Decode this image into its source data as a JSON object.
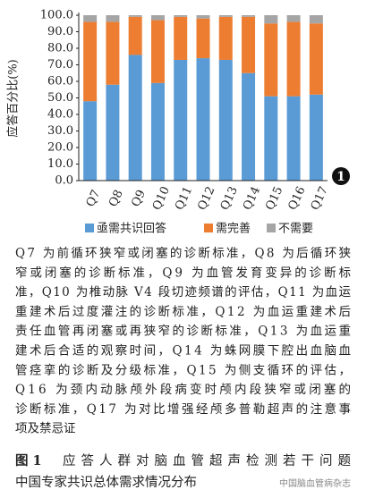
{
  "chart_data": {
    "type": "stacked_bar",
    "y_label": "应答百分比(%)",
    "categories": [
      "Q7",
      "Q8",
      "Q9",
      "Q10",
      "Q11",
      "Q12",
      "Q13",
      "Q14",
      "Q15",
      "Q16",
      "Q17"
    ],
    "series": [
      {
        "name": "亟需共识回答",
        "color": "#5b9bd5",
        "values": [
          48,
          58,
          76,
          59,
          73,
          74,
          73,
          65,
          51,
          51,
          52
        ]
      },
      {
        "name": "需完善",
        "color": "#ed7d31",
        "values": [
          48,
          38,
          23,
          38,
          26,
          24,
          26,
          34,
          44,
          45,
          43
        ]
      },
      {
        "name": "不需要",
        "color": "#a5a5a5",
        "values": [
          4,
          4,
          1,
          3,
          1,
          2,
          1,
          1,
          5,
          4,
          5
        ]
      }
    ],
    "ylim": [
      0,
      100
    ],
    "yticks": [
      {
        "value": 0,
        "label": "0.0"
      },
      {
        "value": 10,
        "label": "10.0"
      },
      {
        "value": 20,
        "label": "20.0"
      },
      {
        "value": 30,
        "label": "30.0"
      },
      {
        "value": 40,
        "label": "40.0"
      },
      {
        "value": 50,
        "label": "50.0"
      },
      {
        "value": 60,
        "label": "60.0"
      },
      {
        "value": 70,
        "label": "70.0"
      },
      {
        "value": 80,
        "label": "80.0"
      },
      {
        "value": 90,
        "label": "90.0"
      },
      {
        "value": 100,
        "label": "100.0"
      }
    ],
    "badge": "1"
  },
  "notes": [
    "Q7 为前循环狭窄或闭塞的诊断标准，Q8 为后循环狭",
    "窄或闭塞的诊断标准，Q9 为血管发育变异的诊断标",
    "准，Q10 为椎动脉 V4 段切迹频谱的评估，Q11 为血运",
    "重建术后过度灌注的诊断标准，Q12 为血运重建术后",
    "责任血管再闭塞或再狭窄的诊断标准，Q13 为血运重",
    "建术后合适的观察时间，Q14 为蛛网膜下腔出血脑血",
    "管痉挛的诊断及分级标准，Q15 为侧支循环的评估，",
    "Q16 为颈内动脉颅外段病变时颅内段狭窄或闭塞的",
    "诊断标准，Q17 为对比增强经颅多普勒超声的注意事",
    "项及禁忌证"
  ],
  "figure_label": "图 1",
  "figure_caption": [
    "应答人群对脑血管超声检测若干问题",
    "中国专家共识总体需求情况分布"
  ],
  "watermark": "中国脑血管病杂志"
}
